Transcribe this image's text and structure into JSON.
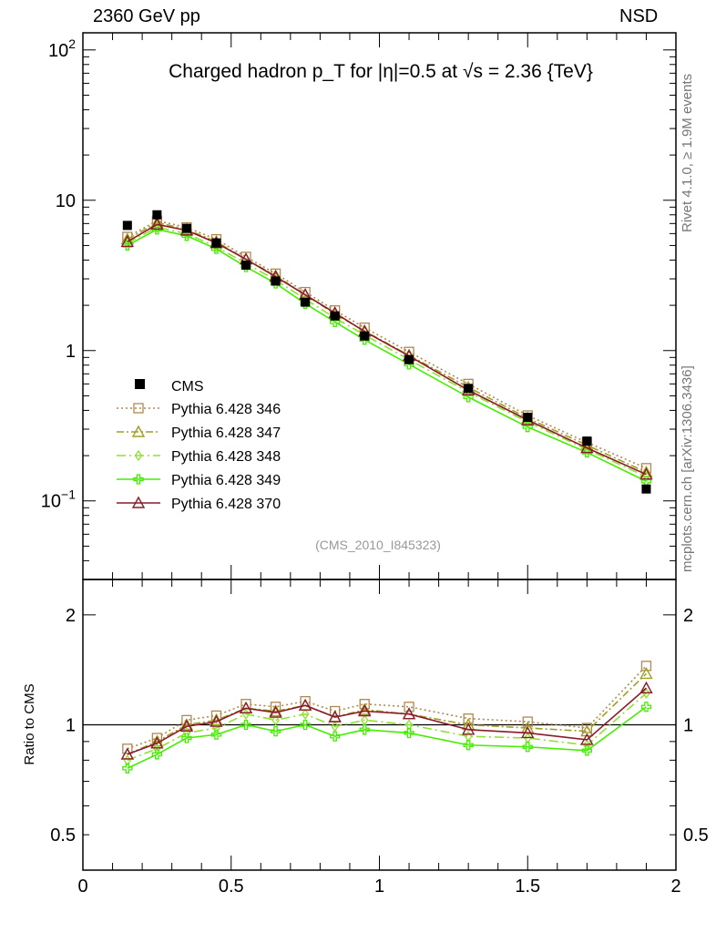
{
  "header": {
    "left": "2360 GeV pp",
    "right": "NSD",
    "side_top": "Rivet 4.1.0, ≥ 1.9M events",
    "side_bottom": "mcplots.cern.ch [arXiv:1306.3436]"
  },
  "chart_data": [
    {
      "type": "line",
      "panel": "main",
      "title": "Charged hadron p_T for |η|=0.5 at √s = 2.36 {TeV}",
      "watermark": "(CMS_2010_I845323)",
      "yscale": "log",
      "xlim": [
        0,
        2
      ],
      "ylim": [
        0.03,
        130
      ],
      "y_ticks": [
        {
          "value": 0.1,
          "label": "10",
          "exp": "−1"
        },
        {
          "value": 1,
          "label": "1",
          "exp": ""
        },
        {
          "value": 10,
          "label": "10",
          "exp": ""
        },
        {
          "value": 100,
          "label": "10",
          "exp": "2"
        }
      ],
      "x": [
        0.15,
        0.25,
        0.35,
        0.45,
        0.55,
        0.65,
        0.75,
        0.85,
        0.95,
        1.1,
        1.3,
        1.5,
        1.7,
        1.9
      ],
      "data": {
        "name": "CMS",
        "values": [
          6.8,
          8.0,
          6.5,
          5.2,
          3.7,
          2.9,
          2.1,
          1.7,
          1.25,
          0.87,
          0.56,
          0.36,
          0.25,
          0.12
        ]
      },
      "series": [
        {
          "name": "Pythia 6.428 346",
          "color": "#b08850",
          "dash": "2,3",
          "marker": "square",
          "values": [
            5.7,
            7.3,
            6.6,
            5.5,
            4.2,
            3.25,
            2.45,
            1.85,
            1.42,
            0.98,
            0.6,
            0.37,
            0.245,
            0.165
          ]
        },
        {
          "name": "Pythia 6.428 347",
          "color": "#a0a020",
          "dash": "8,3,2,3",
          "marker": "triangle",
          "values": [
            5.5,
            7.1,
            6.4,
            5.3,
            4.05,
            3.15,
            2.35,
            1.75,
            1.35,
            0.93,
            0.57,
            0.355,
            0.235,
            0.155
          ]
        },
        {
          "name": "Pythia 6.428 348",
          "color": "#90e030",
          "dash": "10,4,2,4",
          "marker": "diamond",
          "values": [
            5.2,
            6.6,
            6.0,
            4.9,
            3.8,
            2.95,
            2.2,
            1.65,
            1.27,
            0.87,
            0.53,
            0.335,
            0.22,
            0.145
          ]
        },
        {
          "name": "Pythia 6.428 349",
          "color": "#44ee00",
          "dash": "",
          "marker": "cross",
          "values": [
            5.0,
            6.4,
            5.8,
            4.75,
            3.6,
            2.8,
            2.05,
            1.55,
            1.18,
            0.81,
            0.49,
            0.31,
            0.21,
            0.135
          ]
        },
        {
          "name": "Pythia 6.428 370",
          "color": "#8b1a2a",
          "dash": "",
          "marker": "triangle",
          "values": [
            5.3,
            6.9,
            6.3,
            5.2,
            4.05,
            3.1,
            2.35,
            1.78,
            1.34,
            0.92,
            0.545,
            0.345,
            0.225,
            0.15
          ]
        }
      ]
    },
    {
      "type": "line",
      "panel": "ratio",
      "ylabel": "Ratio to CMS",
      "yscale": "log",
      "xlim": [
        0,
        2
      ],
      "ylim": [
        0.4,
        2.5
      ],
      "reference": 1,
      "x_ticks": [
        {
          "value": 0,
          "label": "0"
        },
        {
          "value": 0.5,
          "label": "0.5"
        },
        {
          "value": 1,
          "label": "1"
        },
        {
          "value": 1.5,
          "label": "1.5"
        },
        {
          "value": 2,
          "label": "2"
        }
      ],
      "y_ticks": [
        {
          "value": 0.5,
          "label": "0.5"
        },
        {
          "value": 1,
          "label": "1"
        },
        {
          "value": 2,
          "label": "2"
        }
      ],
      "x": [
        0.15,
        0.25,
        0.35,
        0.45,
        0.55,
        0.65,
        0.75,
        0.85,
        0.95,
        1.1,
        1.3,
        1.5,
        1.7,
        1.9
      ],
      "series": [
        {
          "name": "Pythia 6.428 346",
          "values": [
            0.86,
            0.92,
            1.03,
            1.06,
            1.14,
            1.12,
            1.16,
            1.09,
            1.14,
            1.12,
            1.04,
            1.02,
            0.98,
            1.45
          ]
        },
        {
          "name": "Pythia 6.428 347",
          "values": [
            0.83,
            0.9,
            1.0,
            1.03,
            1.11,
            1.09,
            1.13,
            1.05,
            1.1,
            1.07,
            1.0,
            0.98,
            0.96,
            1.38
          ]
        },
        {
          "name": "Pythia 6.428 348",
          "values": [
            0.8,
            0.86,
            0.95,
            0.98,
            1.07,
            1.03,
            1.07,
            0.99,
            1.03,
            1.0,
            0.93,
            0.92,
            0.88,
            1.22
          ]
        },
        {
          "name": "Pythia 6.428 349",
          "values": [
            0.76,
            0.83,
            0.92,
            0.94,
            1.0,
            0.96,
            1.0,
            0.93,
            0.97,
            0.95,
            0.88,
            0.87,
            0.85,
            1.12
          ]
        },
        {
          "name": "Pythia 6.428 370",
          "values": [
            0.83,
            0.89,
            0.99,
            1.02,
            1.11,
            1.08,
            1.13,
            1.05,
            1.09,
            1.07,
            0.97,
            0.95,
            0.91,
            1.26
          ]
        }
      ]
    }
  ]
}
